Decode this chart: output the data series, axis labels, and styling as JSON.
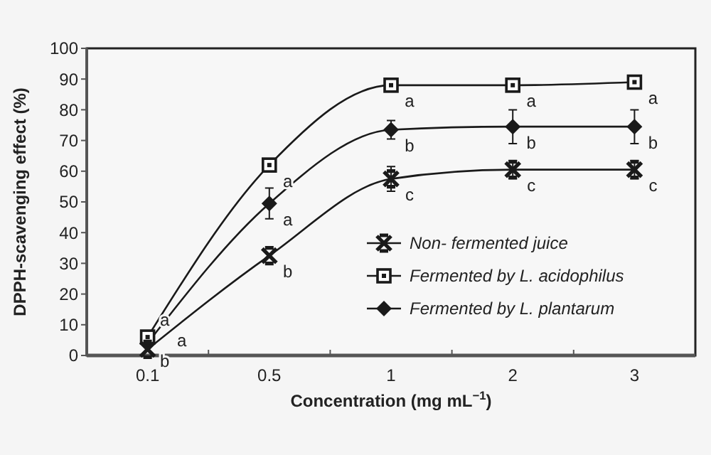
{
  "chart_data": {
    "type": "line",
    "xlabel": "Concentration (mg mL$^{−1}$)",
    "ylabel": "DPPH-scavenging effect (%)",
    "categories": [
      "0.1",
      "0.5",
      "1",
      "2",
      "3"
    ],
    "ylim": [
      0,
      100
    ],
    "yticks": [
      0,
      10,
      20,
      30,
      40,
      50,
      60,
      70,
      80,
      90,
      100
    ],
    "grid": false,
    "legend": "bottom right",
    "line_style": "solid",
    "series": [
      {
        "name": "Non- fermented juice",
        "color": "#1a1a1a",
        "marker": "cross",
        "values": [
          2,
          32.5,
          57.5,
          60.5,
          60.5
        ],
        "errors": [
          null,
          null,
          4,
          3,
          3
        ]
      },
      {
        "name": "Fermented by L. acidophilus",
        "color": "#1a1a1a",
        "marker": "square",
        "values": [
          6,
          62,
          88,
          88,
          89
        ]
      },
      {
        "name": "Fermented by L. plantarum",
        "color": "#1a1a1a",
        "marker": "diamond",
        "values": [
          4,
          49.5,
          73.5,
          74.5,
          74.5
        ],
        "errors": [
          null,
          5,
          3,
          5.5,
          5.5
        ]
      }
    ],
    "annotations": [
      {
        "text": "a",
        "x": "0.1",
        "y": 6
      },
      {
        "text": "a",
        "x": "0.1",
        "y": 4
      },
      {
        "text": "b",
        "x": "0.1",
        "y": 2
      },
      {
        "text": "a",
        "x": "0.5",
        "y": 62
      },
      {
        "text": "a",
        "x": "0.5",
        "y": 49.5
      },
      {
        "text": "b",
        "x": "0.5",
        "y": 32.5
      },
      {
        "text": "a",
        "x": "1",
        "y": 88
      },
      {
        "text": "b",
        "x": "1",
        "y": 73.5
      },
      {
        "text": "c",
        "x": "1",
        "y": 57.5
      },
      {
        "text": "a",
        "x": "2",
        "y": 88
      },
      {
        "text": "b",
        "x": "2",
        "y": 74.5
      },
      {
        "text": "c",
        "x": "2",
        "y": 60.5
      },
      {
        "text": "a",
        "x": "3",
        "y": 89
      },
      {
        "text": "b",
        "x": "3",
        "y": 74.5
      },
      {
        "text": "c",
        "x": "3",
        "y": 60.5
      }
    ]
  }
}
